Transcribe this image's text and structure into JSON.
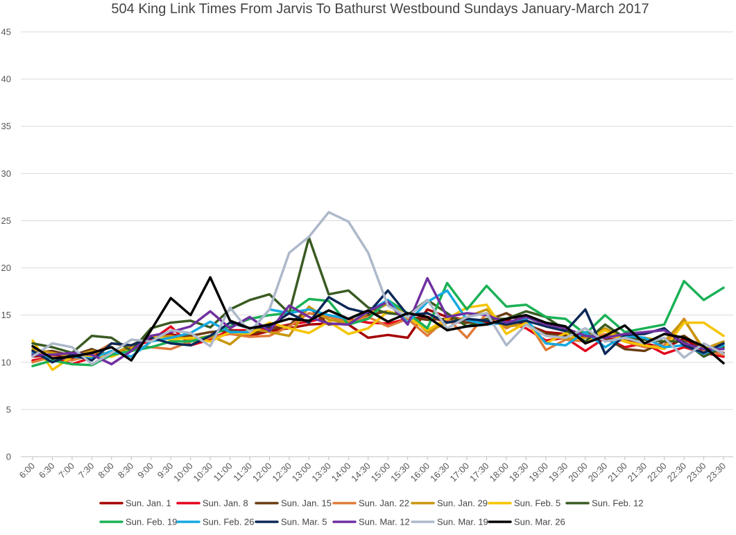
{
  "chart_data": {
    "type": "line",
    "title": "504 King Link Times From Jarvis To Bathurst Westbound Sundays January-March 2017",
    "xlabel": "",
    "ylabel": "",
    "ylim": [
      0,
      45
    ],
    "yticks": [
      0,
      5,
      10,
      15,
      20,
      25,
      30,
      35,
      40,
      45
    ],
    "grid": true,
    "legend_position": "bottom",
    "categories": [
      "6:00",
      "6:30",
      "7:00",
      "7:30",
      "8:00",
      "8:30",
      "9:00",
      "9:30",
      "10:00",
      "10:30",
      "11:00",
      "11:30",
      "12:00",
      "12:30",
      "13:00",
      "13:30",
      "14:00",
      "14:30",
      "15:00",
      "15:30",
      "16:00",
      "16:30",
      "17:00",
      "17:30",
      "18:00",
      "18:30",
      "19:00",
      "19:30",
      "20:00",
      "20:30",
      "21:00",
      "21:30",
      "22:00",
      "22:30",
      "23:00",
      "23:30"
    ],
    "series": [
      {
        "name": "Sun. Jan. 1",
        "color": "#a50000",
        "values": [
          10.6,
          10.8,
          10.3,
          10.9,
          10.9,
          11.2,
          12.6,
          13.0,
          12.5,
          12.6,
          13.2,
          12.8,
          13.3,
          13.6,
          14.0,
          14.1,
          14.0,
          12.6,
          12.9,
          12.6,
          15.6,
          14.8,
          14.5,
          14.2,
          14.5,
          14.0,
          13.2,
          13.0,
          12.8,
          12.5,
          12.3,
          12.0,
          11.5,
          12.5,
          11.2,
          10.6
        ]
      },
      {
        "name": "Sun. Jan. 8",
        "color": "#e3001b",
        "values": [
          10.2,
          10.6,
          9.8,
          10.5,
          10.8,
          11.6,
          12.3,
          13.8,
          11.8,
          12.4,
          13.4,
          13.4,
          13.6,
          14.0,
          14.3,
          14.8,
          14.6,
          14.2,
          14.1,
          14.6,
          14.8,
          14.3,
          14.2,
          14.6,
          14.2,
          13.6,
          12.3,
          12.6,
          11.2,
          12.6,
          11.6,
          12.0,
          10.9,
          11.6,
          11.0,
          10.6
        ]
      },
      {
        "name": "Sun. Jan. 15",
        "color": "#6b3b12",
        "values": [
          11.0,
          11.2,
          10.7,
          11.4,
          10.6,
          11.8,
          12.8,
          12.6,
          12.8,
          13.2,
          13.4,
          13.0,
          13.5,
          13.9,
          15.8,
          14.0,
          14.2,
          15.0,
          15.4,
          14.8,
          14.5,
          14.6,
          14.2,
          14.4,
          15.2,
          14.1,
          13.0,
          12.8,
          13.2,
          12.6,
          11.4,
          11.2,
          12.2,
          12.8,
          11.4,
          11.0
        ]
      },
      {
        "name": "Sun. Jan. 22",
        "color": "#e07b39",
        "values": [
          10.0,
          10.6,
          10.2,
          10.8,
          12.0,
          11.7,
          11.6,
          11.4,
          12.2,
          12.6,
          13.0,
          12.7,
          12.8,
          13.8,
          15.2,
          14.8,
          14.3,
          14.8,
          13.8,
          14.6,
          12.8,
          14.7,
          12.6,
          15.2,
          13.6,
          14.6,
          11.3,
          12.4,
          12.2,
          13.0,
          12.2,
          11.6,
          11.8,
          14.6,
          11.2,
          10.8
        ]
      },
      {
        "name": "Sun. Jan. 29",
        "color": "#c8960c",
        "values": [
          11.4,
          11.0,
          10.6,
          11.2,
          10.8,
          11.8,
          12.6,
          12.8,
          12.4,
          12.8,
          11.9,
          13.6,
          13.2,
          12.8,
          15.9,
          14.5,
          14.2,
          15.2,
          16.2,
          15.2,
          13.2,
          14.2,
          14.8,
          15.6,
          13.8,
          14.0,
          12.8,
          12.5,
          12.6,
          13.6,
          12.4,
          12.6,
          12.2,
          14.5,
          11.4,
          12.2
        ]
      },
      {
        "name": "Sun. Feb. 5",
        "color": "#f5c400",
        "values": [
          12.3,
          9.2,
          10.6,
          10.7,
          10.6,
          11.4,
          12.8,
          12.4,
          12.6,
          12.2,
          13.2,
          13.0,
          14.2,
          13.6,
          13.1,
          14.3,
          13.0,
          13.6,
          15.4,
          14.8,
          13.4,
          14.6,
          15.8,
          16.1,
          13.0,
          14.2,
          12.0,
          13.1,
          12.2,
          13.4,
          12.2,
          11.8,
          11.4,
          14.2,
          14.2,
          12.8
        ]
      },
      {
        "name": "Sun. Feb. 12",
        "color": "#3a5b22",
        "values": [
          12.0,
          11.6,
          11.0,
          12.8,
          12.6,
          11.2,
          13.6,
          14.2,
          14.4,
          13.7,
          15.6,
          16.6,
          17.2,
          15.2,
          23.2,
          17.2,
          17.6,
          15.8,
          15.2,
          15.0,
          16.6,
          15.2,
          13.8,
          14.6,
          14.6,
          15.4,
          14.8,
          13.4,
          12.2,
          14.0,
          12.6,
          12.4,
          12.2,
          12.2,
          10.6,
          11.6
        ]
      },
      {
        "name": "Sun. Feb. 19",
        "color": "#1ab156",
        "values": [
          9.6,
          10.2,
          9.8,
          9.7,
          10.8,
          11.2,
          11.6,
          12.2,
          12.2,
          12.8,
          13.8,
          14.6,
          15.0,
          15.2,
          16.7,
          16.5,
          14.0,
          14.6,
          16.6,
          15.2,
          13.6,
          18.4,
          15.6,
          18.1,
          15.9,
          16.1,
          14.8,
          14.6,
          13.0,
          15.0,
          13.2,
          13.6,
          14.0,
          18.6,
          16.6,
          17.9
        ]
      },
      {
        "name": "Sun. Feb. 26",
        "color": "#15a9e0",
        "values": [
          11.0,
          10.4,
          10.6,
          10.4,
          11.2,
          10.6,
          12.2,
          12.6,
          13.1,
          14.3,
          13.2,
          13.2,
          15.6,
          15.2,
          15.6,
          15.0,
          14.6,
          15.4,
          16.6,
          14.2,
          16.4,
          17.6,
          14.5,
          14.0,
          14.2,
          14.6,
          12.0,
          11.8,
          13.2,
          11.6,
          12.8,
          12.6,
          11.6,
          11.8,
          10.9,
          11.8
        ]
      },
      {
        "name": "Sun. Mar. 5",
        "color": "#0b2857",
        "values": [
          11.2,
          10.0,
          10.8,
          10.2,
          12.0,
          11.8,
          12.6,
          12.0,
          11.8,
          12.8,
          14.2,
          13.6,
          13.8,
          15.2,
          14.2,
          16.9,
          15.7,
          15.2,
          17.6,
          15.0,
          15.2,
          14.2,
          14.6,
          14.4,
          14.0,
          14.4,
          13.8,
          13.3,
          15.6,
          10.9,
          12.9,
          13.0,
          13.6,
          11.8,
          11.0,
          12.0
        ]
      },
      {
        "name": "Sun. Mar. 12",
        "color": "#7030a0",
        "values": [
          10.8,
          10.8,
          11.0,
          10.8,
          9.8,
          11.2,
          12.8,
          13.2,
          13.8,
          15.4,
          13.6,
          14.8,
          13.3,
          16.0,
          14.8,
          14.1,
          14.0,
          15.4,
          16.4,
          14.0,
          18.9,
          14.8,
          15.2,
          15.0,
          14.2,
          14.8,
          14.0,
          13.6,
          12.8,
          12.6,
          13.0,
          13.2,
          13.4,
          12.0,
          11.4,
          11.4
        ]
      },
      {
        "name": "Sun. Mar. 19",
        "color": "#adb9ca",
        "values": [
          10.6,
          12.0,
          11.6,
          9.8,
          11.0,
          12.4,
          12.2,
          13.4,
          13.1,
          11.7,
          15.8,
          13.2,
          15.6,
          21.6,
          23.3,
          25.9,
          24.9,
          21.6,
          16.0,
          14.8,
          16.6,
          13.6,
          14.8,
          15.2,
          11.8,
          14.0,
          12.8,
          12.6,
          13.6,
          12.2,
          12.6,
          12.0,
          12.6,
          10.5,
          12.0,
          10.9
        ]
      },
      {
        "name": "Sun. Mar. 26",
        "color": "#000000",
        "values": [
          11.7,
          10.4,
          10.6,
          11.0,
          11.6,
          10.2,
          13.4,
          16.8,
          15.0,
          19.0,
          14.4,
          13.6,
          14.0,
          14.6,
          14.4,
          15.5,
          14.6,
          15.5,
          14.3,
          15.2,
          14.8,
          13.4,
          13.8,
          14.0,
          14.6,
          15.0,
          14.2,
          13.8,
          12.0,
          12.8,
          13.9,
          12.0,
          13.0,
          12.6,
          11.7,
          9.9
        ]
      }
    ]
  }
}
